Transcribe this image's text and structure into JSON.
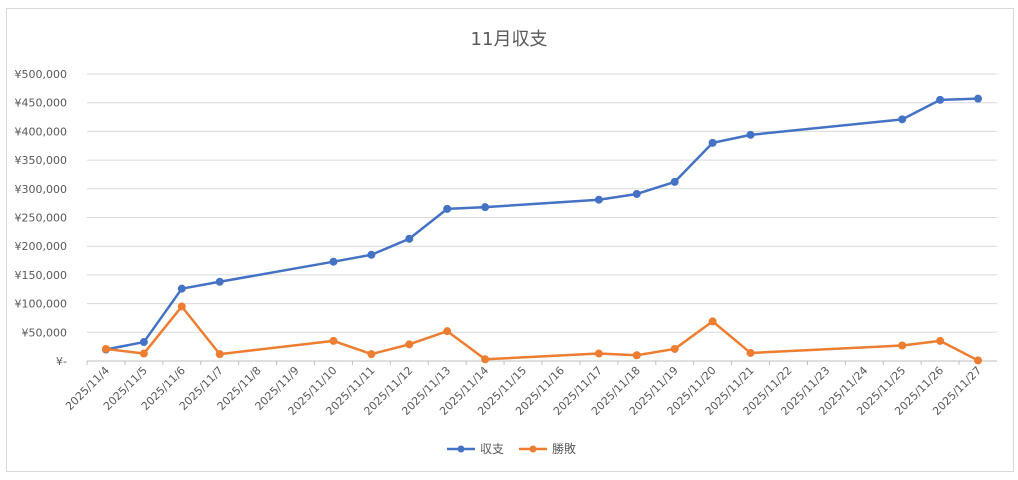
{
  "chart_data": {
    "type": "line",
    "title": "11月収支",
    "categories": [
      "2025/11/4",
      "2025/11/5",
      "2025/11/6",
      "2025/11/7",
      "2025/11/8",
      "2025/11/9",
      "2025/11/10",
      "2025/11/11",
      "2025/11/12",
      "2025/11/13",
      "2025/11/14",
      "2025/11/15",
      "2025/11/16",
      "2025/11/17",
      "2025/11/18",
      "2025/11/19",
      "2025/11/20",
      "2025/11/21",
      "2025/11/22",
      "2025/11/23",
      "2025/11/24",
      "2025/11/25",
      "2025/11/26",
      "2025/11/27"
    ],
    "y_ticks": [
      "¥-",
      "¥50,000",
      "¥100,000",
      "¥150,000",
      "¥200,000",
      "¥250,000",
      "¥300,000",
      "¥350,000",
      "¥400,000",
      "¥450,000",
      "¥500,000"
    ],
    "ylim": [
      0,
      500000
    ],
    "grid": true,
    "legend_position": "bottom",
    "series": [
      {
        "name": "収支",
        "color": "#4472c4",
        "values": [
          20000,
          33000,
          126000,
          138000,
          null,
          null,
          173000,
          185000,
          213000,
          265000,
          268000,
          null,
          null,
          281000,
          291000,
          312000,
          380000,
          394000,
          null,
          null,
          null,
          421000,
          455000,
          457000
        ]
      },
      {
        "name": "勝敗",
        "color": "#ed7d31",
        "values": [
          21000,
          13000,
          95000,
          12000,
          null,
          null,
          35000,
          12000,
          29000,
          52000,
          3000,
          null,
          null,
          13000,
          10000,
          21000,
          69000,
          14000,
          null,
          null,
          null,
          27000,
          35000,
          1000
        ]
      }
    ]
  }
}
